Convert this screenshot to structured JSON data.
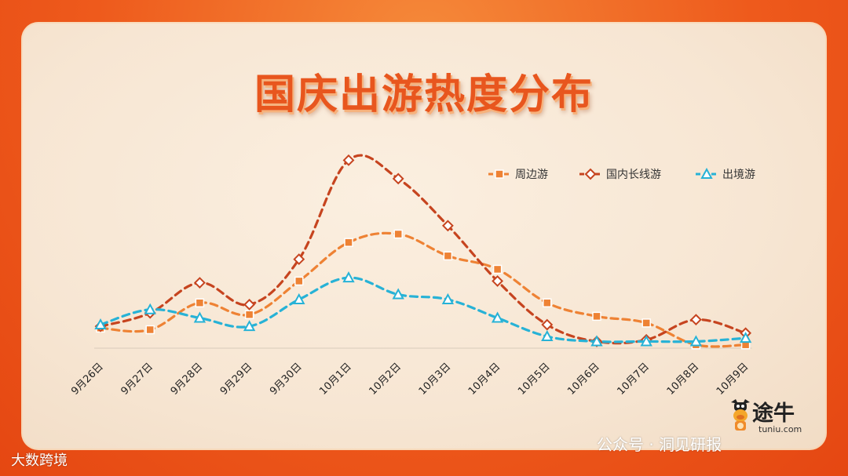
{
  "title": "国庆出游热度分布",
  "colors": {
    "surrounding": "#ee8234",
    "domestic_long": "#c6441f",
    "outbound": "#27b2d6",
    "background": "#ee5a1c",
    "card": "#f7e6d3",
    "title": "#e8561e"
  },
  "brand": {
    "name": "途牛",
    "url": "tuniu.com",
    "icon": "cow-mascot-icon"
  },
  "watermarks": {
    "wechat": "公众号 · 洞见研报",
    "corner": "大数跨境"
  },
  "chart_data": {
    "type": "line",
    "categories": [
      "9月26日",
      "9月27日",
      "9月28日",
      "9月29日",
      "9月30日",
      "10月1日",
      "10月2日",
      "10月3日",
      "10月4日",
      "10月5日",
      "10月6日",
      "10月7日",
      "10月8日",
      "10月9日"
    ],
    "series": [
      {
        "name": "周边游",
        "marker": "square",
        "color": "#ee8234",
        "values": [
          12,
          11,
          27,
          20,
          40,
          63,
          68,
          55,
          47,
          27,
          19,
          15,
          2,
          2
        ]
      },
      {
        "name": "国内长线游",
        "marker": "diamond",
        "color": "#c6441f",
        "values": [
          13,
          21,
          39,
          26,
          53,
          112,
          101,
          73,
          40,
          14,
          4,
          5,
          17,
          9
        ]
      },
      {
        "name": "出境游",
        "marker": "triangle",
        "color": "#27b2d6",
        "values": [
          14,
          23,
          18,
          13,
          29,
          42,
          32,
          29,
          18,
          7,
          4,
          4,
          4,
          6
        ]
      }
    ],
    "ylim": [
      0,
      120
    ],
    "legend_position": "top-right",
    "grid": false
  }
}
